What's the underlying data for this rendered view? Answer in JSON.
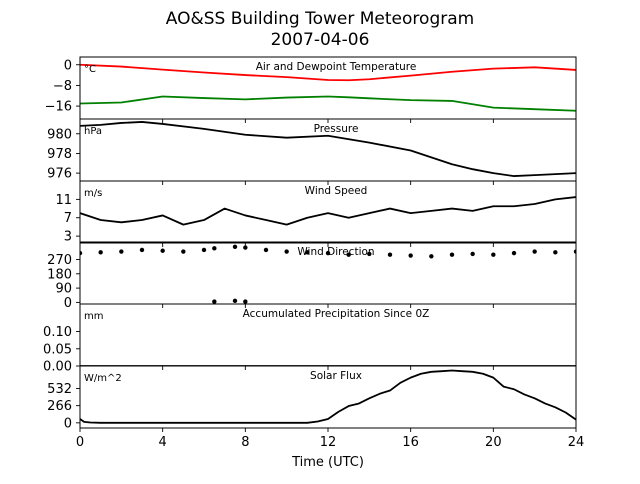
{
  "figure": {
    "title": "AO&SS Building Tower Meteorogram",
    "subtitle": "2007-04-06",
    "xlabel": "Time (UTC)",
    "x_ticks": [
      "0",
      "4",
      "8",
      "12",
      "16",
      "20",
      "24"
    ]
  },
  "chart_data": [
    {
      "type": "line",
      "title": "Air and Dewpoint Temperature",
      "unit": "°C",
      "xlim": [
        0,
        24
      ],
      "ylim": [
        -21,
        3
      ],
      "y_ticks": [
        0,
        -8,
        -16
      ],
      "y_tick_labels": [
        "0",
        "−8",
        "−16"
      ],
      "x": [
        0,
        2,
        4,
        6,
        8,
        10,
        12,
        13,
        14,
        16,
        18,
        20,
        22,
        24
      ],
      "series": [
        {
          "color": "#ff0000",
          "values": [
            0,
            -0.7,
            -1.9,
            -3.0,
            -4.0,
            -4.8,
            -5.9,
            -6.0,
            -5.6,
            -4.2,
            -2.7,
            -1.5,
            -1.0,
            -2.0
          ]
        },
        {
          "color": "#008000",
          "values": [
            -15.0,
            -14.6,
            -12.3,
            -12.9,
            -13.4,
            -12.7,
            -12.3,
            -12.6,
            -13.0,
            -13.7,
            -14.0,
            -16.6,
            -17.2,
            -17.8
          ]
        }
      ]
    },
    {
      "type": "line",
      "title": "Pressure",
      "unit": "hPa",
      "xlim": [
        0,
        24
      ],
      "ylim": [
        975.2,
        981.5
      ],
      "y_ticks": [
        980,
        978,
        976
      ],
      "y_tick_labels": [
        "980",
        "978",
        "976"
      ],
      "x": [
        0,
        1,
        2,
        3,
        4,
        6,
        8,
        10,
        12,
        14,
        16,
        17,
        18,
        19,
        20,
        21,
        22,
        23,
        24
      ],
      "series": [
        {
          "color": "#000000",
          "values": [
            980.8,
            980.9,
            981.1,
            981.2,
            981.0,
            980.5,
            979.9,
            979.6,
            979.8,
            979.1,
            978.3,
            977.6,
            976.9,
            976.4,
            976.0,
            975.7,
            975.8,
            975.9,
            976.0
          ]
        }
      ]
    },
    {
      "type": "line",
      "title": "Wind Speed",
      "unit": "m/s",
      "xlim": [
        0,
        24
      ],
      "ylim": [
        1.5,
        15
      ],
      "y_ticks": [
        11,
        7,
        3
      ],
      "y_tick_labels": [
        "11",
        "7",
        "3"
      ],
      "x": [
        0,
        1,
        2,
        3,
        4,
        5,
        6,
        7,
        8,
        9,
        10,
        11,
        12,
        13,
        14,
        15,
        16,
        17,
        18,
        19,
        20,
        21,
        22,
        23,
        24
      ],
      "series": [
        {
          "color": "#000000",
          "values": [
            8.0,
            6.5,
            6.0,
            6.5,
            7.5,
            5.5,
            6.5,
            9.0,
            7.5,
            6.5,
            5.5,
            7.0,
            8.0,
            7.0,
            8.0,
            9.0,
            8.0,
            8.5,
            9.0,
            8.5,
            9.5,
            9.5,
            10.0,
            11.0,
            11.5
          ]
        }
      ]
    },
    {
      "type": "scatter",
      "title": "Wind Direction",
      "unit": "",
      "xlim": [
        0,
        24
      ],
      "ylim": [
        -10,
        380
      ],
      "y_ticks": [
        270,
        180,
        90,
        0
      ],
      "y_tick_labels": [
        "270",
        "180",
        "90",
        "0"
      ],
      "x": [
        0,
        1,
        2,
        3,
        4,
        5,
        6,
        6.5,
        7.5,
        8,
        9,
        10,
        11,
        12,
        13,
        14,
        15,
        16,
        17,
        18,
        19,
        20,
        21,
        22,
        23,
        24
      ],
      "series": [
        {
          "color": "#000000",
          "values": [
            310,
            315,
            320,
            330,
            325,
            320,
            330,
            340,
            350,
            345,
            330,
            320,
            315,
            310,
            300,
            305,
            300,
            295,
            290,
            300,
            305,
            300,
            310,
            320,
            315,
            320
          ]
        },
        {
          "color": "#000000",
          "values": [
            null,
            null,
            null,
            null,
            null,
            null,
            null,
            5,
            10,
            5,
            null,
            null,
            null,
            null,
            null,
            null,
            null,
            null,
            null,
            null,
            null,
            null,
            null,
            null,
            null,
            null
          ]
        }
      ]
    },
    {
      "type": "line",
      "title": "Accumulated Precipitation Since 0Z",
      "unit": "mm",
      "xlim": [
        0,
        24
      ],
      "ylim": [
        0,
        0.18
      ],
      "y_ticks": [
        0.1,
        0.05,
        0.0
      ],
      "y_tick_labels": [
        "0.10",
        "0.05",
        "0.00"
      ],
      "x": [
        0,
        24
      ],
      "series": [
        {
          "color": "#000000",
          "values": [
            0,
            0
          ]
        }
      ]
    },
    {
      "type": "line",
      "title": "Solar Flux",
      "unit": "W/m^2",
      "xlim": [
        0,
        24
      ],
      "ylim": [
        -80,
        880
      ],
      "y_ticks": [
        532,
        266,
        0
      ],
      "y_tick_labels": [
        "532",
        "266",
        "0"
      ],
      "x": [
        0,
        0.2,
        0.5,
        1,
        11,
        11.5,
        12,
        12.5,
        13,
        13.5,
        14,
        14.5,
        15,
        15.5,
        16,
        16.5,
        17,
        17.5,
        18,
        18.5,
        19,
        19.5,
        20,
        20.5,
        21,
        21.5,
        22,
        22.5,
        23,
        23.5,
        24
      ],
      "series": [
        {
          "color": "#000000",
          "values": [
            60,
            15,
            5,
            0,
            0,
            20,
            60,
            170,
            260,
            300,
            380,
            450,
            500,
            620,
            700,
            760,
            790,
            800,
            810,
            800,
            790,
            760,
            700,
            560,
            520,
            440,
            380,
            300,
            240,
            160,
            50
          ]
        }
      ]
    }
  ]
}
